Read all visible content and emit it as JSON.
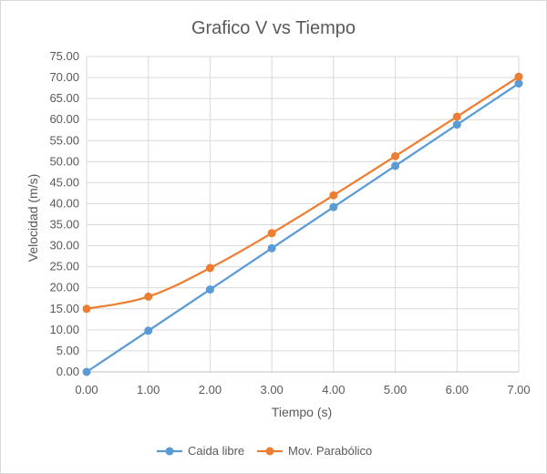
{
  "chart_data": {
    "type": "line",
    "title": "Grafico V vs Tiempo",
    "xlabel": "Tiempo (s)",
    "ylabel": "Velocidad (m/s)",
    "x": [
      0,
      1,
      2,
      3,
      4,
      5,
      6,
      7
    ],
    "xlim": [
      0,
      7
    ],
    "ylim": [
      0,
      75
    ],
    "x_ticks": [
      0,
      1,
      2,
      3,
      4,
      5,
      6,
      7
    ],
    "x_tick_labels": [
      "0.00",
      "1.00",
      "2.00",
      "3.00",
      "4.00",
      "5.00",
      "6.00",
      "7.00"
    ],
    "y_ticks": [
      0,
      5,
      10,
      15,
      20,
      25,
      30,
      35,
      40,
      45,
      50,
      55,
      60,
      65,
      70,
      75
    ],
    "y_tick_labels": [
      "0.00",
      "5.00",
      "10.00",
      "15.00",
      "20.00",
      "25.00",
      "30.00",
      "35.00",
      "40.00",
      "45.00",
      "50.00",
      "55.00",
      "60.00",
      "65.00",
      "70.00",
      "75.00"
    ],
    "grid": true,
    "legend_position": "bottom",
    "series": [
      {
        "name": "Caida libre",
        "color": "#5b9bd5",
        "values": [
          0,
          9.8,
          19.6,
          29.4,
          39.2,
          49.0,
          58.8,
          68.6
        ]
      },
      {
        "name": "Mov. Parabólico",
        "color": "#ed7d31",
        "values": [
          15.0,
          17.9,
          24.7,
          33.0,
          42.0,
          51.3,
          60.7,
          70.2
        ]
      }
    ]
  }
}
